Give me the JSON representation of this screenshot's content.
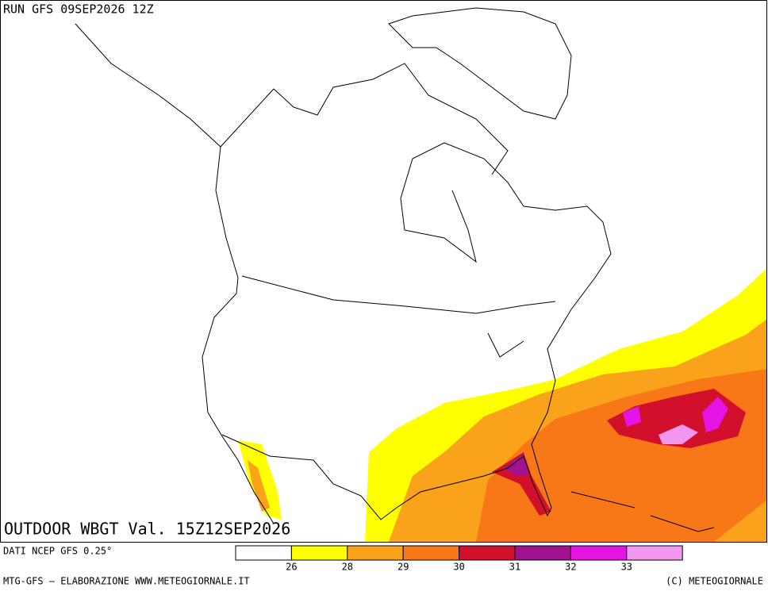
{
  "header": {
    "run": "RUN GFS 09SEP2026 12Z"
  },
  "map": {
    "field": "OUTDOOR WBGT Val. 15Z12SEP2026"
  },
  "legend": {
    "source": "DATI NCEP GFS 0.25°",
    "colors": [
      "#ffffff",
      "#ffff00",
      "#f9a21a",
      "#f87818",
      "#d2102c",
      "#a0128e",
      "#e414e4",
      "#f296f0"
    ],
    "thresholds": [
      26,
      28,
      29,
      30,
      31,
      32,
      33
    ]
  },
  "footer": {
    "left": "MTG-GFS — ELABORAZIONE WWW.METEOGIORNALE.IT",
    "right": "(C) METEOGIORNALE"
  }
}
